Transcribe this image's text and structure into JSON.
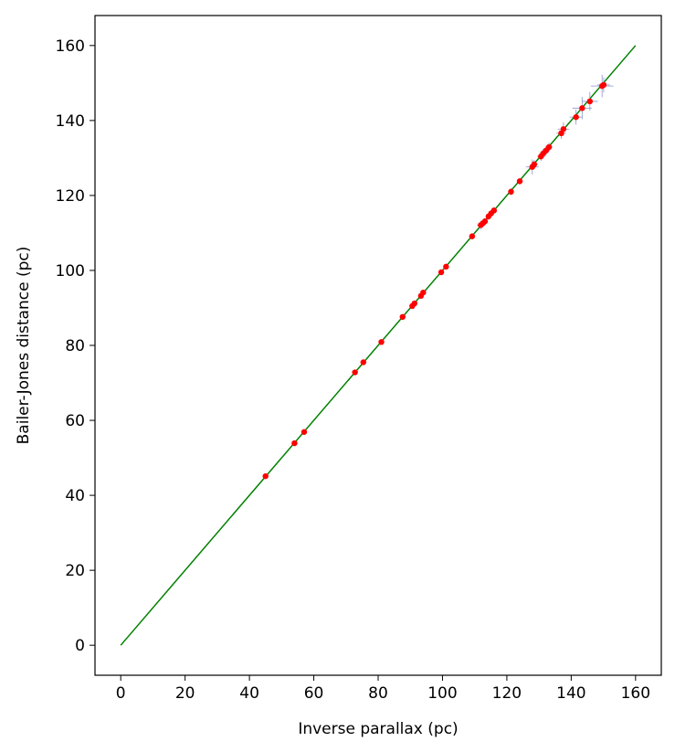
{
  "chart_data": {
    "type": "scatter",
    "title": "",
    "xlabel": "Inverse parallax (pc)",
    "ylabel": "Bailer-Jones distance (pc)",
    "xlim": [
      -8,
      168
    ],
    "ylim": [
      -8,
      168
    ],
    "xticks": [
      0,
      20,
      40,
      60,
      80,
      100,
      120,
      140,
      160
    ],
    "yticks": [
      0,
      20,
      40,
      60,
      80,
      100,
      120,
      140,
      160
    ],
    "xtick_labels": [
      "0",
      "20",
      "40",
      "60",
      "80",
      "100",
      "120",
      "140",
      "160"
    ],
    "ytick_labels": [
      "0",
      "20",
      "40",
      "60",
      "80",
      "100",
      "120",
      "140",
      "160"
    ],
    "grid": false,
    "reference_line": {
      "x": [
        0,
        160
      ],
      "y": [
        0,
        160
      ],
      "color": "#008000"
    },
    "series": [
      {
        "marker": "point",
        "color": "#ff0000",
        "errorbar_color": "#8a96c8",
        "points": [
          {
            "x": 45.0,
            "y": 45.1,
            "xerr": 0.3,
            "yerr": 0.3
          },
          {
            "x": 54.0,
            "y": 53.9,
            "xerr": 0.3,
            "yerr": 0.3
          },
          {
            "x": 57.0,
            "y": 56.9,
            "xerr": 0.3,
            "yerr": 0.3
          },
          {
            "x": 72.8,
            "y": 72.8,
            "xerr": 0.4,
            "yerr": 0.4
          },
          {
            "x": 75.4,
            "y": 75.5,
            "xerr": 0.4,
            "yerr": 0.4
          },
          {
            "x": 81.0,
            "y": 80.9,
            "xerr": 0.4,
            "yerr": 0.4
          },
          {
            "x": 87.6,
            "y": 87.6,
            "xerr": 0.5,
            "yerr": 0.5
          },
          {
            "x": 90.6,
            "y": 90.5,
            "xerr": 0.5,
            "yerr": 0.5
          },
          {
            "x": 91.3,
            "y": 91.2,
            "xerr": 0.5,
            "yerr": 0.5
          },
          {
            "x": 93.3,
            "y": 93.2,
            "xerr": 0.5,
            "yerr": 0.5
          },
          {
            "x": 94.0,
            "y": 94.1,
            "xerr": 0.5,
            "yerr": 0.5
          },
          {
            "x": 99.6,
            "y": 99.5,
            "xerr": 0.6,
            "yerr": 0.6
          },
          {
            "x": 101.1,
            "y": 101.0,
            "xerr": 0.6,
            "yerr": 0.6
          },
          {
            "x": 109.2,
            "y": 109.1,
            "xerr": 0.8,
            "yerr": 0.8
          },
          {
            "x": 111.9,
            "y": 112.1,
            "xerr": 1.2,
            "yerr": 1.2
          },
          {
            "x": 112.6,
            "y": 112.6,
            "xerr": 0.9,
            "yerr": 0.9
          },
          {
            "x": 113.2,
            "y": 113.1,
            "xerr": 0.9,
            "yerr": 0.9
          },
          {
            "x": 114.3,
            "y": 114.4,
            "xerr": 0.9,
            "yerr": 0.9
          },
          {
            "x": 115.1,
            "y": 115.2,
            "xerr": 0.9,
            "yerr": 0.9
          },
          {
            "x": 116.0,
            "y": 116.0,
            "xerr": 0.9,
            "yerr": 0.9
          },
          {
            "x": 121.3,
            "y": 121.0,
            "xerr": 0.9,
            "yerr": 0.9
          },
          {
            "x": 124.0,
            "y": 123.8,
            "xerr": 0.9,
            "yerr": 0.9
          },
          {
            "x": 127.9,
            "y": 127.6,
            "xerr": 2.0,
            "yerr": 2.0
          },
          {
            "x": 128.5,
            "y": 128.3,
            "xerr": 1.2,
            "yerr": 1.2
          },
          {
            "x": 130.6,
            "y": 130.4,
            "xerr": 1.2,
            "yerr": 1.2
          },
          {
            "x": 131.3,
            "y": 131.2,
            "xerr": 1.2,
            "yerr": 1.2
          },
          {
            "x": 132.2,
            "y": 132.0,
            "xerr": 1.2,
            "yerr": 1.2
          },
          {
            "x": 133.1,
            "y": 132.9,
            "xerr": 1.2,
            "yerr": 1.2
          },
          {
            "x": 136.9,
            "y": 136.6,
            "xerr": 1.5,
            "yerr": 1.5
          },
          {
            "x": 137.6,
            "y": 137.7,
            "xerr": 1.8,
            "yerr": 1.8
          },
          {
            "x": 141.5,
            "y": 140.9,
            "xerr": 2.0,
            "yerr": 2.0
          },
          {
            "x": 143.4,
            "y": 143.3,
            "xerr": 3.0,
            "yerr": 3.0
          },
          {
            "x": 145.8,
            "y": 145.1,
            "xerr": 2.5,
            "yerr": 2.5
          },
          {
            "x": 149.6,
            "y": 149.2,
            "xerr": 3.5,
            "yerr": 3.0
          },
          {
            "x": 150.1,
            "y": 149.5,
            "xerr": 2.0,
            "yerr": 2.0
          }
        ]
      }
    ]
  }
}
